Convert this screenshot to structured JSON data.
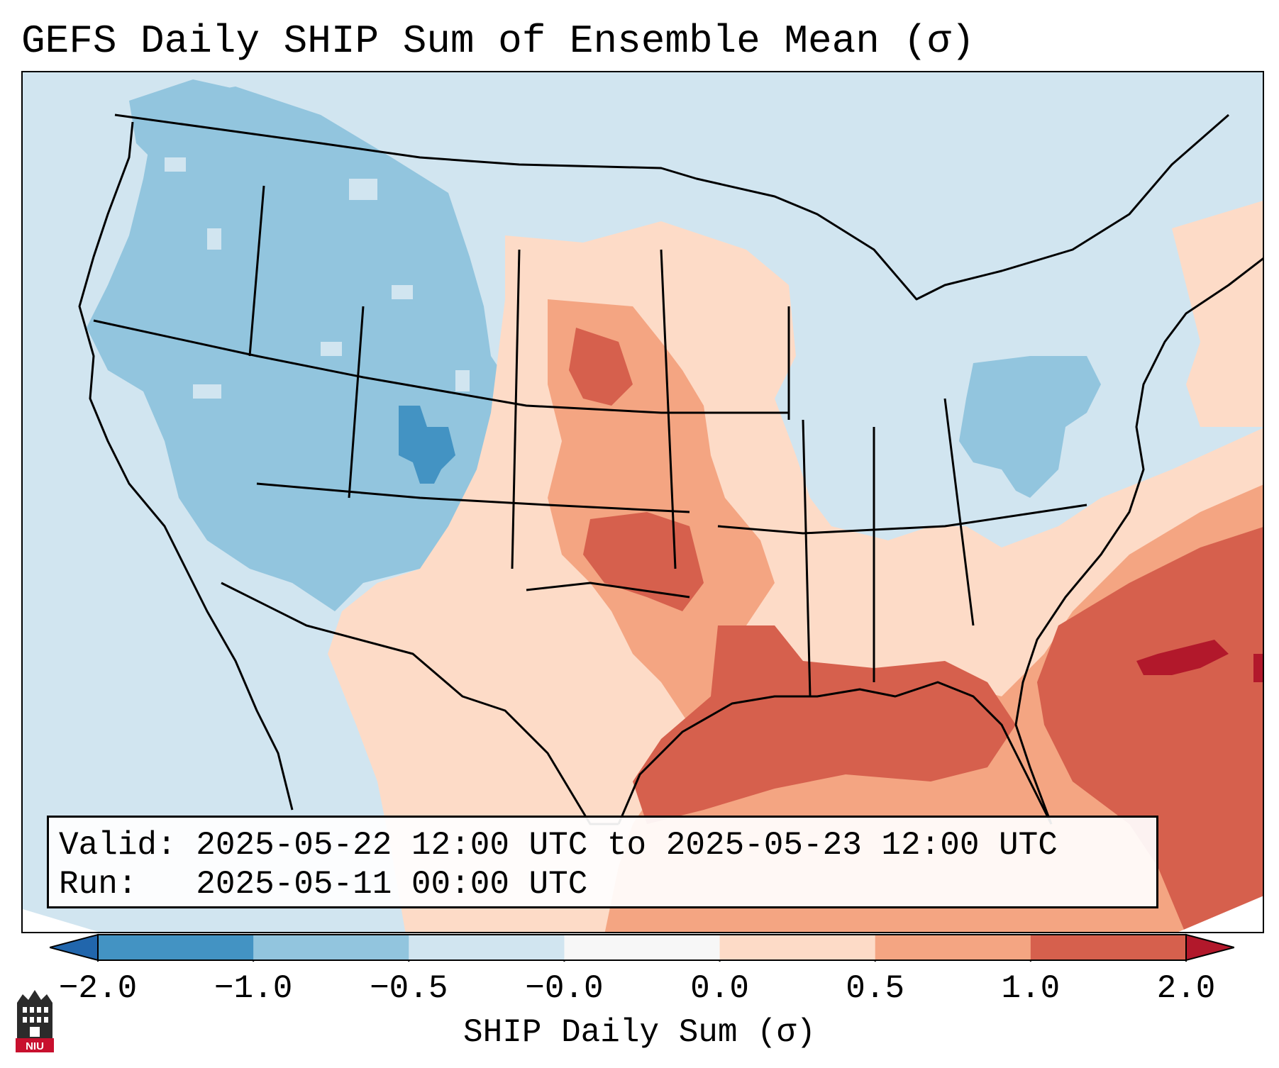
{
  "title": "GEFS Daily SHIP Sum of Ensemble Mean (σ)",
  "info": {
    "valid_label": "Valid:",
    "valid_value": "2025-05-22 12:00 UTC to 2025-05-23 12:00 UTC",
    "run_label": "Run:",
    "run_value": "2025-05-11 00:00 UTC"
  },
  "colorbar": {
    "label": "SHIP Daily Sum (σ)",
    "ticks": [
      "−2.0",
      "−1.0",
      "−0.5",
      "−0.0",
      "0.0",
      "0.5",
      "1.0",
      "2.0"
    ],
    "colors": [
      "#4393c3",
      "#92c5de",
      "#d1e5f0",
      "#f7f7f7",
      "#fddbc7",
      "#f4a582",
      "#d6604d"
    ],
    "under_color": "#2166ac",
    "over_color": "#b2182b"
  },
  "map": {
    "background_color": "#d1e5f0",
    "coastline_color": "#000000"
  },
  "logo": {
    "text": "NIU"
  }
}
